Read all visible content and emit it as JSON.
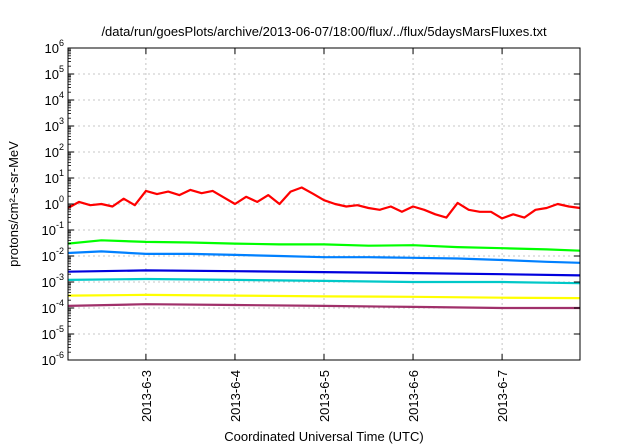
{
  "chart_data": {
    "type": "line",
    "title": "/data/run/goesPlots/archive/2013-06-07/18:00/flux/../flux/5daysMarsFluxes.txt",
    "xlabel": "Coordinated Universal Time (UTC)",
    "ylabel": "protons/cm²-s-sr-MeV",
    "yscale": "log",
    "ylim_exp": [
      -6,
      6
    ],
    "y_tick_exponents": [
      -6,
      -5,
      -4,
      -3,
      -2,
      -1,
      0,
      1,
      2,
      3,
      4,
      5,
      6
    ],
    "xlim": [
      "2013-06-02T03:00",
      "2013-06-07T21:00"
    ],
    "x_ticks": [
      "2013-6-3",
      "2013-6-4",
      "2013-6-5",
      "2013-6-6",
      "2013-6-7"
    ],
    "x_tick_times": [
      "2013-06-03T00:00",
      "2013-06-04T00:00",
      "2013-06-05T00:00",
      "2013-06-06T00:00",
      "2013-06-07T00:00"
    ],
    "grid": true,
    "series": [
      {
        "color": "#ff0000",
        "x": [
          "2013-06-02T03:00",
          "2013-06-02T06:00",
          "2013-06-02T09:00",
          "2013-06-02T12:00",
          "2013-06-02T15:00",
          "2013-06-02T18:00",
          "2013-06-02T21:00",
          "2013-06-03T00:00",
          "2013-06-03T03:00",
          "2013-06-03T06:00",
          "2013-06-03T09:00",
          "2013-06-03T12:00",
          "2013-06-03T15:00",
          "2013-06-03T18:00",
          "2013-06-03T21:00",
          "2013-06-04T00:00",
          "2013-06-04T03:00",
          "2013-06-04T06:00",
          "2013-06-04T09:00",
          "2013-06-04T12:00",
          "2013-06-04T15:00",
          "2013-06-04T18:00",
          "2013-06-04T21:00",
          "2013-06-05T00:00",
          "2013-06-05T03:00",
          "2013-06-05T06:00",
          "2013-06-05T09:00",
          "2013-06-05T12:00",
          "2013-06-05T15:00",
          "2013-06-05T18:00",
          "2013-06-05T21:00",
          "2013-06-06T00:00",
          "2013-06-06T03:00",
          "2013-06-06T06:00",
          "2013-06-06T09:00",
          "2013-06-06T12:00",
          "2013-06-06T15:00",
          "2013-06-06T18:00",
          "2013-06-06T21:00",
          "2013-06-07T00:00",
          "2013-06-07T03:00",
          "2013-06-07T06:00",
          "2013-06-07T09:00",
          "2013-06-07T12:00",
          "2013-06-07T15:00",
          "2013-06-07T18:00",
          "2013-06-07T21:00"
        ],
        "values": [
          0.7,
          1.2,
          0.9,
          1.0,
          0.8,
          1.6,
          0.9,
          3.2,
          2.4,
          3.0,
          2.2,
          3.5,
          2.6,
          3.2,
          1.8,
          1.0,
          1.9,
          1.2,
          2.2,
          1.0,
          3.0,
          4.3,
          2.5,
          1.4,
          1.0,
          0.8,
          0.9,
          0.7,
          0.6,
          0.8,
          0.5,
          0.8,
          0.6,
          0.4,
          0.3,
          1.1,
          0.6,
          0.5,
          0.5,
          0.28,
          0.4,
          0.3,
          0.6,
          0.7,
          1.0,
          0.8,
          0.7
        ]
      },
      {
        "color": "#00ff00",
        "x": [
          "2013-06-02T03:00",
          "2013-06-02T12:00",
          "2013-06-03T00:00",
          "2013-06-03T12:00",
          "2013-06-04T00:00",
          "2013-06-04T12:00",
          "2013-06-05T00:00",
          "2013-06-05T12:00",
          "2013-06-06T00:00",
          "2013-06-06T12:00",
          "2013-06-07T00:00",
          "2013-06-07T12:00",
          "2013-06-07T21:00"
        ],
        "values": [
          0.03,
          0.04,
          0.035,
          0.033,
          0.03,
          0.028,
          0.028,
          0.025,
          0.026,
          0.022,
          0.02,
          0.018,
          0.016
        ]
      },
      {
        "color": "#0080ff",
        "x": [
          "2013-06-02T03:00",
          "2013-06-02T12:00",
          "2013-06-03T00:00",
          "2013-06-03T12:00",
          "2013-06-04T00:00",
          "2013-06-04T12:00",
          "2013-06-05T00:00",
          "2013-06-05T12:00",
          "2013-06-06T00:00",
          "2013-06-06T12:00",
          "2013-06-07T00:00",
          "2013-06-07T12:00",
          "2013-06-07T21:00"
        ],
        "values": [
          0.013,
          0.015,
          0.012,
          0.012,
          0.011,
          0.01,
          0.009,
          0.009,
          0.0085,
          0.008,
          0.007,
          0.006,
          0.0055
        ]
      },
      {
        "color": "#0000dd",
        "x": [
          "2013-06-02T03:00",
          "2013-06-03T00:00",
          "2013-06-04T00:00",
          "2013-06-05T00:00",
          "2013-06-06T00:00",
          "2013-06-07T00:00",
          "2013-06-07T21:00"
        ],
        "values": [
          0.0025,
          0.0028,
          0.0026,
          0.0024,
          0.0022,
          0.002,
          0.0018
        ]
      },
      {
        "color": "#00c8c8",
        "x": [
          "2013-06-02T03:00",
          "2013-06-03T00:00",
          "2013-06-04T00:00",
          "2013-06-05T00:00",
          "2013-06-06T00:00",
          "2013-06-07T00:00",
          "2013-06-07T21:00"
        ],
        "values": [
          0.0012,
          0.0013,
          0.0012,
          0.0011,
          0.001,
          0.001,
          0.0009
        ]
      },
      {
        "color": "#ffff00",
        "x": [
          "2013-06-02T03:00",
          "2013-06-03T00:00",
          "2013-06-04T00:00",
          "2013-06-05T00:00",
          "2013-06-06T00:00",
          "2013-06-07T00:00",
          "2013-06-07T21:00"
        ],
        "values": [
          0.0003,
          0.00032,
          0.0003,
          0.00028,
          0.00027,
          0.00025,
          0.00024
        ]
      },
      {
        "color": "#a0306a",
        "x": [
          "2013-06-02T03:00",
          "2013-06-03T00:00",
          "2013-06-04T00:00",
          "2013-06-05T00:00",
          "2013-06-06T00:00",
          "2013-06-07T00:00",
          "2013-06-07T21:00"
        ],
        "values": [
          0.00012,
          0.00014,
          0.00013,
          0.00012,
          0.00011,
          0.0001,
          0.0001
        ]
      }
    ]
  }
}
